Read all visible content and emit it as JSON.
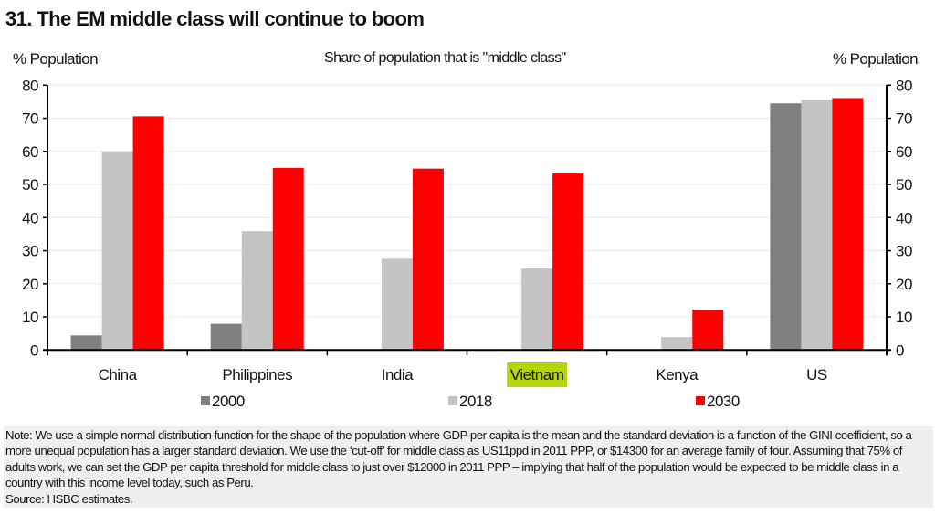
{
  "title": "31. The EM middle class will continue to boom",
  "chart_data": {
    "type": "bar",
    "title": "Share of population that is \"middle class\"",
    "ylabel_left": "% Population",
    "ylabel_right": "% Population",
    "ylim": [
      0,
      80
    ],
    "yticks": [
      0,
      10,
      20,
      30,
      40,
      50,
      60,
      70,
      80
    ],
    "grid": true,
    "legend_position": "bottom",
    "categories": [
      "China",
      "Philippines",
      "India",
      "Vietnam",
      "Kenya",
      "US"
    ],
    "highlighted_category": "Vietnam",
    "highlight_color": "#b5d40a",
    "series": [
      {
        "name": "2000",
        "color": "#808080",
        "values": [
          4.4,
          7.9,
          null,
          null,
          null,
          74.5
        ]
      },
      {
        "name": "2018",
        "color": "#c4c4c4",
        "values": [
          60,
          35.9,
          27.6,
          24.6,
          3.9,
          75.6
        ]
      },
      {
        "name": "2030",
        "color": "#ff0000",
        "values": [
          70.6,
          55,
          54.8,
          53.3,
          12.2,
          76.1
        ]
      }
    ]
  },
  "note": "Note: We use a simple normal distribution function for the shape of the population where GDP per capita is the mean and the standard deviation is a function of the GINI coefficient, so a more unequal population has a larger standard deviation. We use the ‘cut-off’ for middle class as US11ppd in 2011 PPP, or $14300 for an average family of four. Assuming that 75% of adults work, we can set the GDP per capita threshold for middle class to just over $12000 in 2011 PPP – implying that half of the population would be expected to be middle class in a country with this income level today, such as Peru.",
  "source": "Source: HSBC estimates."
}
